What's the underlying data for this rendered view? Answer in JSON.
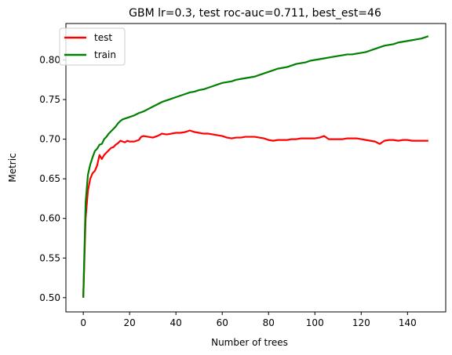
{
  "chart_data": {
    "type": "line",
    "title": "GBM lr=0.3, test roc-auc=0.711, best_est=46",
    "xlabel": "Number of trees",
    "ylabel": "Metric",
    "xlim": [
      -7.5,
      156.5
    ],
    "ylim": [
      0.482,
      0.846
    ],
    "xticks": [
      0,
      20,
      40,
      60,
      80,
      100,
      120,
      140
    ],
    "yticks": [
      0.5,
      0.55,
      0.6,
      0.65,
      0.7,
      0.75,
      0.8
    ],
    "ytick_labels": [
      "0.50",
      "0.55",
      "0.60",
      "0.65",
      "0.70",
      "0.75",
      "0.80"
    ],
    "grid": false,
    "legend": "top-left",
    "series": [
      {
        "name": "test",
        "color": "#ff0000",
        "x": [
          0,
          1,
          2,
          3,
          4,
          5,
          6,
          7,
          8,
          9,
          10,
          11,
          12,
          13,
          14,
          15,
          16,
          17,
          18,
          19,
          20,
          22,
          24,
          25,
          26,
          28,
          30,
          32,
          34,
          36,
          38,
          40,
          42,
          44,
          46,
          48,
          50,
          52,
          54,
          56,
          58,
          60,
          62,
          64,
          66,
          68,
          70,
          72,
          74,
          76,
          78,
          80,
          82,
          84,
          86,
          88,
          90,
          92,
          94,
          96,
          98,
          100,
          102,
          104,
          106,
          108,
          110,
          112,
          114,
          116,
          118,
          120,
          122,
          124,
          126,
          128,
          130,
          132,
          134,
          136,
          138,
          140,
          142,
          144,
          146,
          148,
          149
        ],
        "values": [
          0.5,
          0.6,
          0.635,
          0.65,
          0.657,
          0.66,
          0.667,
          0.68,
          0.675,
          0.68,
          0.683,
          0.686,
          0.689,
          0.69,
          0.693,
          0.695,
          0.698,
          0.697,
          0.696,
          0.698,
          0.697,
          0.697,
          0.699,
          0.703,
          0.704,
          0.703,
          0.702,
          0.704,
          0.707,
          0.706,
          0.707,
          0.708,
          0.708,
          0.709,
          0.711,
          0.709,
          0.708,
          0.707,
          0.707,
          0.706,
          0.705,
          0.704,
          0.702,
          0.701,
          0.702,
          0.702,
          0.703,
          0.703,
          0.703,
          0.702,
          0.701,
          0.699,
          0.698,
          0.699,
          0.699,
          0.699,
          0.7,
          0.7,
          0.701,
          0.701,
          0.701,
          0.701,
          0.702,
          0.704,
          0.7,
          0.7,
          0.7,
          0.7,
          0.701,
          0.701,
          0.701,
          0.7,
          0.699,
          0.698,
          0.697,
          0.694,
          0.698,
          0.699,
          0.699,
          0.698,
          0.699,
          0.699,
          0.698,
          0.698,
          0.698,
          0.698,
          0.698
        ]
      },
      {
        "name": "train",
        "color": "#008000",
        "x": [
          0,
          1,
          2,
          3,
          4,
          5,
          6,
          7,
          8,
          9,
          10,
          11,
          12,
          13,
          14,
          15,
          16,
          17,
          18,
          19,
          20,
          22,
          24,
          26,
          28,
          30,
          32,
          34,
          36,
          38,
          40,
          42,
          44,
          46,
          48,
          50,
          52,
          54,
          56,
          58,
          60,
          62,
          64,
          66,
          68,
          70,
          72,
          74,
          76,
          78,
          80,
          82,
          84,
          86,
          88,
          90,
          92,
          94,
          96,
          98,
          100,
          102,
          104,
          106,
          108,
          110,
          112,
          114,
          116,
          118,
          120,
          122,
          124,
          126,
          128,
          130,
          132,
          134,
          136,
          138,
          140,
          142,
          144,
          146,
          148,
          149
        ],
        "values": [
          0.5,
          0.62,
          0.655,
          0.668,
          0.677,
          0.685,
          0.688,
          0.693,
          0.694,
          0.7,
          0.703,
          0.707,
          0.71,
          0.713,
          0.716,
          0.72,
          0.723,
          0.725,
          0.726,
          0.727,
          0.728,
          0.73,
          0.733,
          0.735,
          0.738,
          0.741,
          0.744,
          0.747,
          0.749,
          0.751,
          0.753,
          0.755,
          0.757,
          0.759,
          0.76,
          0.762,
          0.763,
          0.765,
          0.767,
          0.769,
          0.771,
          0.772,
          0.773,
          0.775,
          0.776,
          0.777,
          0.778,
          0.779,
          0.781,
          0.783,
          0.785,
          0.787,
          0.789,
          0.79,
          0.791,
          0.793,
          0.795,
          0.796,
          0.797,
          0.799,
          0.8,
          0.801,
          0.802,
          0.803,
          0.804,
          0.805,
          0.806,
          0.807,
          0.807,
          0.808,
          0.809,
          0.81,
          0.812,
          0.814,
          0.816,
          0.818,
          0.819,
          0.82,
          0.822,
          0.823,
          0.824,
          0.825,
          0.826,
          0.827,
          0.829,
          0.83
        ]
      }
    ]
  }
}
